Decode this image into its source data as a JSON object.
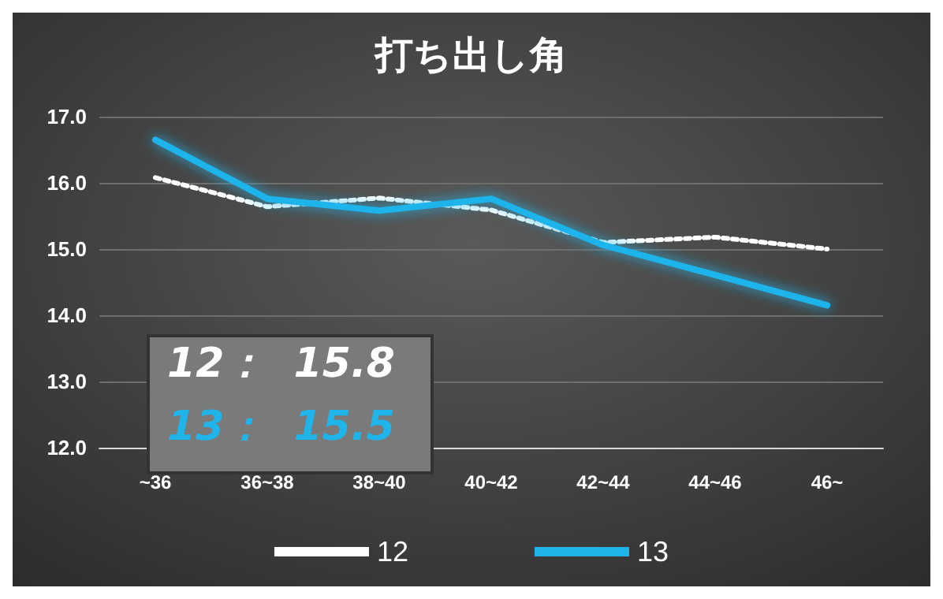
{
  "chart_data": {
    "type": "line",
    "title": "打ち出し角",
    "categories": [
      "~36",
      "36~38",
      "38~40",
      "40~42",
      "42~44",
      "44~46",
      "46~"
    ],
    "series": [
      {
        "name": "12",
        "color": "#ffffff",
        "line_style": "dotted",
        "values": [
          16.08,
          15.64,
          15.77,
          15.59,
          15.1,
          15.18,
          15.0
        ]
      },
      {
        "name": "13",
        "color": "#1fb4ea",
        "line_style": "solid",
        "values": [
          16.65,
          15.76,
          15.58,
          15.76,
          15.06,
          14.61,
          14.15
        ]
      }
    ],
    "ylim": [
      12,
      17
    ],
    "yticks": [
      {
        "value": 12,
        "label": "12.0"
      },
      {
        "value": 13,
        "label": "13.0"
      },
      {
        "value": 14,
        "label": "14.0"
      },
      {
        "value": 15,
        "label": "15.0"
      },
      {
        "value": 16,
        "label": "16.0"
      },
      {
        "value": 17,
        "label": "17.0"
      }
    ],
    "grid": "y",
    "legend": "bottom",
    "marker": "none",
    "annotations": [
      "12：  15.8",
      "13：  15.5"
    ]
  }
}
